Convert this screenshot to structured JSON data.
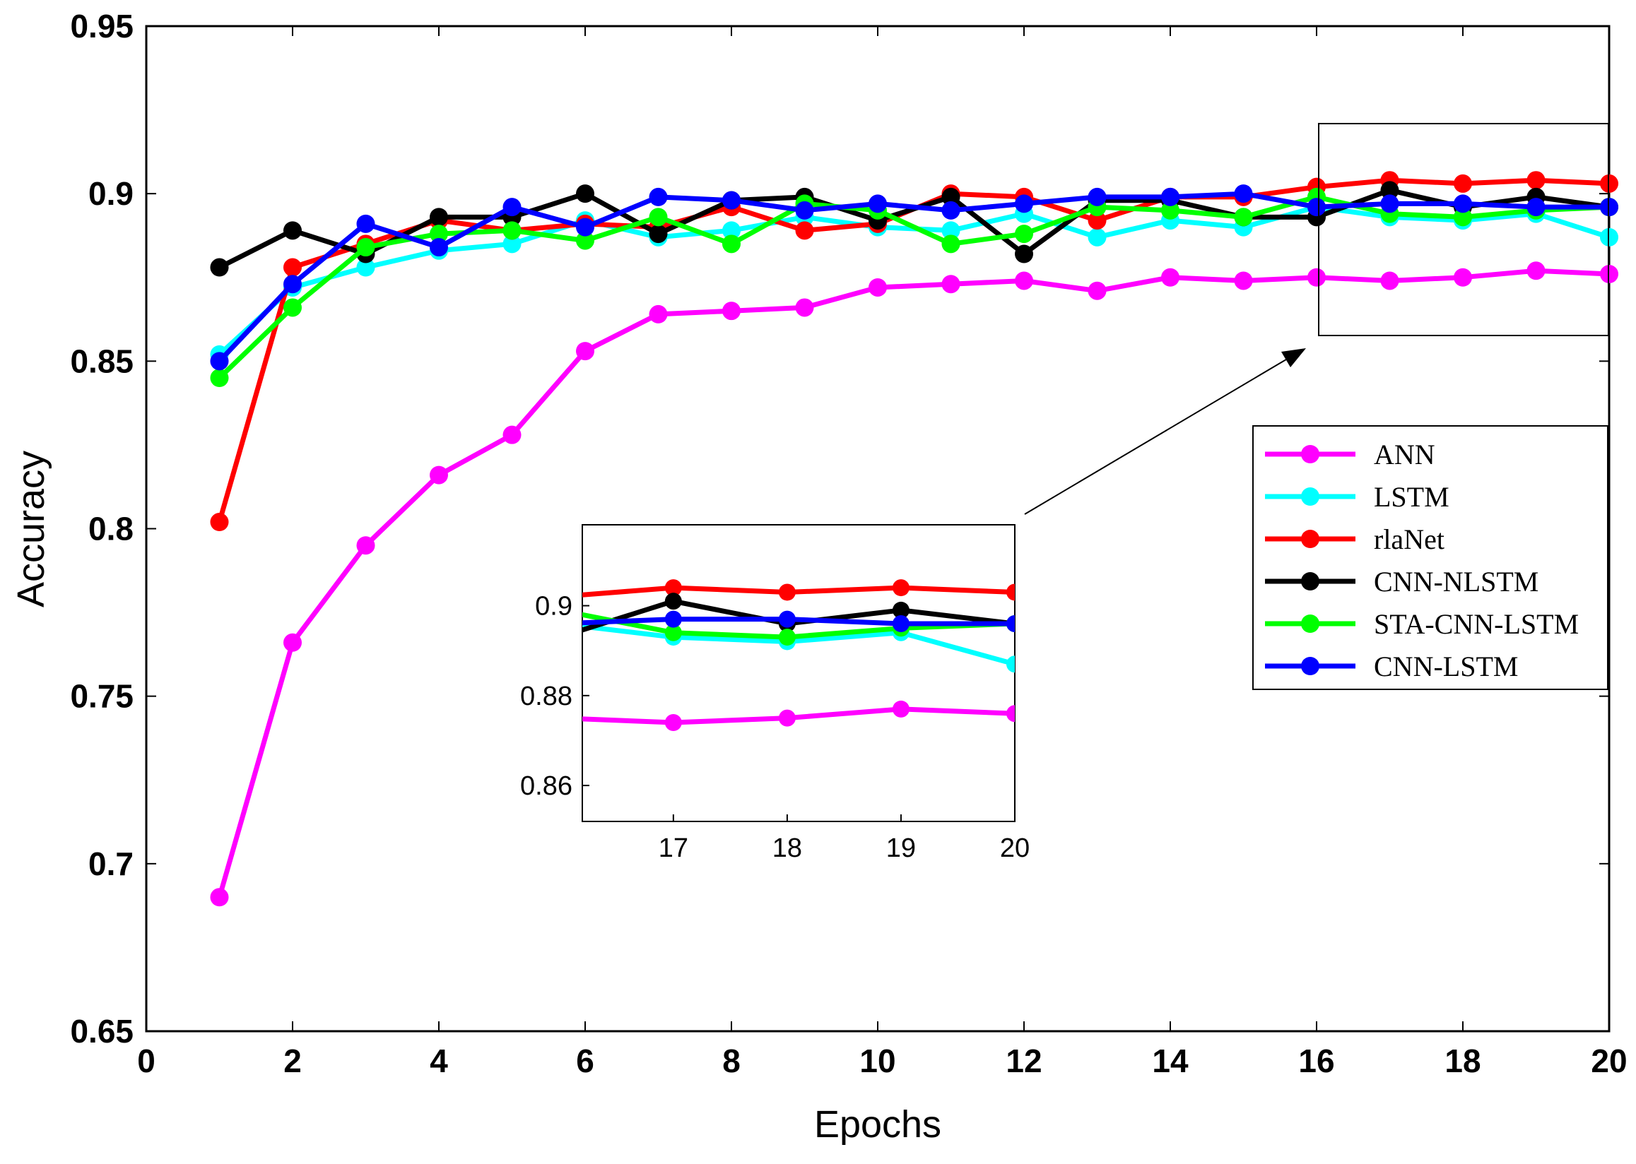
{
  "chart_data": {
    "type": "line",
    "title": "",
    "xlabel": "Epochs",
    "ylabel": "Accuracy",
    "xlim": [
      0,
      20
    ],
    "ylim": [
      0.65,
      0.95
    ],
    "xticks": [
      "0",
      "2",
      "4",
      "6",
      "8",
      "10",
      "12",
      "14",
      "16",
      "18",
      "20"
    ],
    "yticks": [
      "0.65",
      "0.7",
      "0.75",
      "0.8",
      "0.85",
      "0.9",
      "0.95"
    ],
    "grid": false,
    "legend_position": "right-middle",
    "x": [
      1,
      2,
      3,
      4,
      5,
      6,
      7,
      8,
      9,
      10,
      11,
      12,
      13,
      14,
      15,
      16,
      17,
      18,
      19,
      20
    ],
    "series": [
      {
        "name": "ANN",
        "color": "#ff00ff",
        "values": [
          0.69,
          0.766,
          0.795,
          0.816,
          0.828,
          0.853,
          0.864,
          0.865,
          0.866,
          0.872,
          0.873,
          0.874,
          0.871,
          0.875,
          0.874,
          0.875,
          0.874,
          0.875,
          0.877,
          0.876
        ]
      },
      {
        "name": "LSTM",
        "color": "#00ffff",
        "values": [
          0.852,
          0.872,
          0.878,
          0.883,
          0.885,
          0.892,
          0.887,
          0.889,
          0.893,
          0.89,
          0.889,
          0.894,
          0.887,
          0.892,
          0.89,
          0.896,
          0.893,
          0.892,
          0.894,
          0.887
        ]
      },
      {
        "name": "rlaNet",
        "color": "#ff0000",
        "values": [
          0.802,
          0.878,
          0.885,
          0.892,
          0.889,
          0.891,
          0.89,
          0.896,
          0.889,
          0.891,
          0.9,
          0.899,
          0.892,
          0.899,
          0.899,
          0.902,
          0.904,
          0.903,
          0.904,
          0.903
        ]
      },
      {
        "name": "CNN-NLSTM",
        "color": "#000000",
        "values": [
          0.878,
          0.889,
          0.882,
          0.893,
          0.893,
          0.9,
          0.888,
          0.898,
          0.899,
          0.892,
          0.899,
          0.882,
          0.898,
          0.898,
          0.893,
          0.893,
          0.901,
          0.896,
          0.899,
          0.896
        ]
      },
      {
        "name": "STA-CNN-LSTM",
        "color": "#00ff00",
        "values": [
          0.845,
          0.866,
          0.884,
          0.888,
          0.889,
          0.886,
          0.893,
          0.885,
          0.897,
          0.895,
          0.885,
          0.888,
          0.896,
          0.895,
          0.893,
          0.899,
          0.894,
          0.893,
          0.895,
          0.896
        ]
      },
      {
        "name": "CNN-LSTM",
        "color": "#0000ff",
        "values": [
          0.85,
          0.873,
          0.891,
          0.884,
          0.896,
          0.89,
          0.899,
          0.898,
          0.895,
          0.897,
          0.895,
          0.897,
          0.899,
          0.899,
          0.9,
          0.896,
          0.897,
          0.897,
          0.896,
          0.896
        ]
      }
    ],
    "inset": {
      "xlim": [
        16.2,
        20
      ],
      "ylim": [
        0.852,
        0.918
      ],
      "xticks": [
        "17",
        "18",
        "19",
        "20"
      ],
      "yticks": [
        "0.86",
        "0.88",
        "0.9"
      ],
      "x_from": 16,
      "x_to": 20
    }
  }
}
